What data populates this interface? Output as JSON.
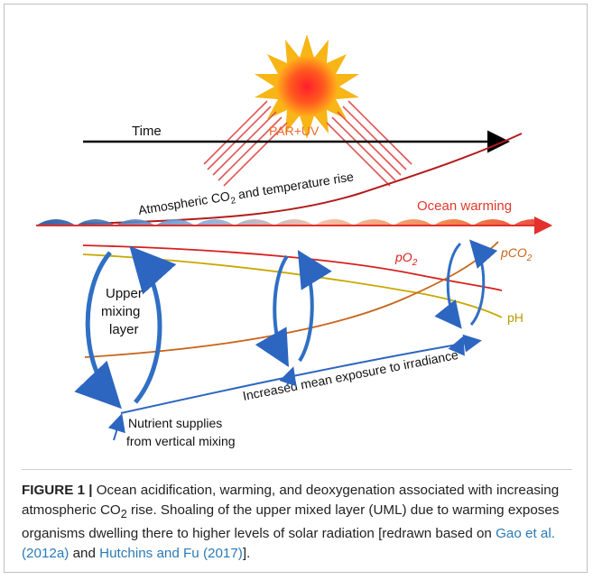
{
  "diagram": {
    "time_label": "Time",
    "par_uv_label": "PAR+UV",
    "atm_label_pre": "Atmospheric CO",
    "atm_label_sub": "2",
    "atm_label_post": " and  temperature rise",
    "ocean_warming_label": "Ocean warming",
    "po2_label_pre": "pO",
    "po2_label_sub": "2",
    "pco2_label_pre": "pCO",
    "pco2_label_sub": "2",
    "ph_label": "pH",
    "upper_mixing_line1": "Upper",
    "upper_mixing_line2": "mixing",
    "upper_mixing_line3": "layer",
    "irradiance_label": "Increased mean exposure to irradiance",
    "nutrient_line1": "Nutrient supplies",
    "nutrient_line2": "from vertical mixing",
    "colors": {
      "sun_core": "#f0302a",
      "sun_rays": "#f7b516",
      "po2": "#d62020",
      "pco2": "#c8651a",
      "ph": "#c9a800",
      "atm_curve": "#b31b1b",
      "mixing_arrow": "#2f6fc4",
      "ocean_warming_text": "#e2382a"
    }
  },
  "caption": {
    "fig_label": "FIGURE 1 |",
    "text_1": " Ocean acidification, warming, and deoxygenation associated with increasing atmospheric CO",
    "text_1_sub": "2",
    "text_2": " rise. Shoaling of the upper mixed layer (UML) due to warming exposes organisms dwelling there to higher levels of solar radiation [redrawn based on ",
    "ref_1": "Gao et al. (2012a)",
    "text_3": " and ",
    "ref_2": "Hutchins and Fu (2017)",
    "text_4": "]."
  }
}
